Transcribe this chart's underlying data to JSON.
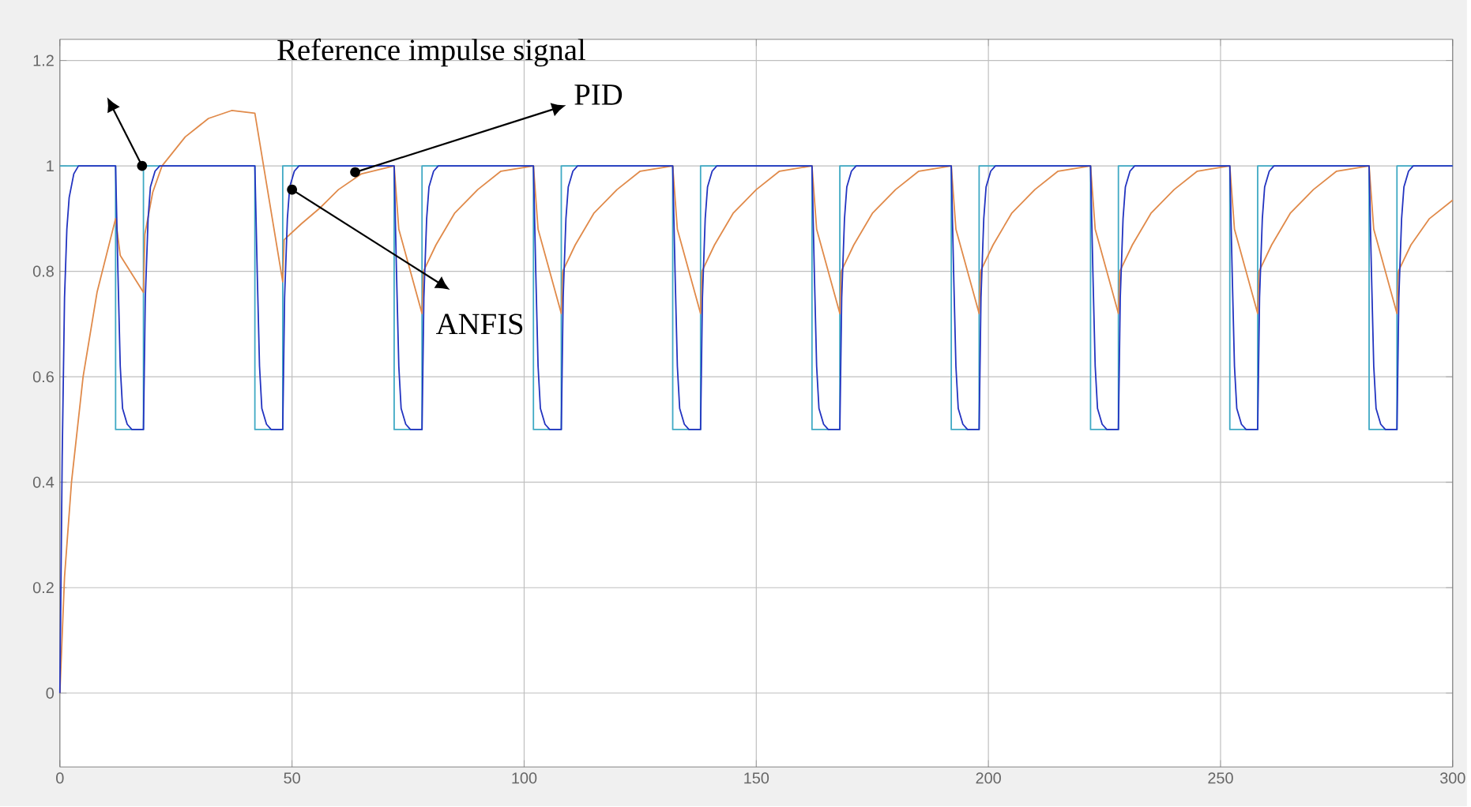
{
  "chart_data": {
    "type": "line",
    "xlim": [
      0,
      300
    ],
    "ylim": [
      -0.14,
      1.24
    ],
    "xticks": [
      0,
      50,
      100,
      150,
      200,
      250,
      300
    ],
    "yticks": [
      0,
      0.2,
      0.4,
      0.6,
      0.8,
      1,
      1.2
    ],
    "grid": true,
    "annotations": [
      "Reference impulse signal",
      {
        "text": "PID",
        "x": 63.6,
        "y": 0.988
      },
      {
        "text": "ANFIS",
        "x": 50,
        "y": 0.955
      }
    ],
    "series": [
      {
        "type": "step",
        "color": "#3fa9c4",
        "x": [
          0,
          12,
          18,
          42,
          48,
          72,
          78,
          102,
          108,
          132,
          138,
          162,
          168,
          192,
          198,
          222,
          228,
          252,
          258,
          282,
          288,
          300
        ],
        "values": [
          1,
          0.5,
          1,
          0.5,
          1,
          0.5,
          1,
          0.5,
          1,
          0.5,
          1,
          0.5,
          1,
          0.5,
          1,
          0.5,
          1,
          0.5,
          1,
          0.5,
          1,
          1
        ]
      },
      {
        "color": "#e08a4a",
        "x": [
          0,
          1,
          2.5,
          5,
          8,
          12,
          13,
          18,
          18.3,
          20,
          22,
          27,
          32,
          37,
          42,
          48,
          48.3,
          52,
          56,
          60,
          65,
          72,
          73,
          78,
          78.3,
          81,
          85,
          90,
          95,
          102,
          103,
          108,
          108.3,
          111,
          115,
          120,
          125,
          132,
          133,
          138,
          138.3,
          141,
          145,
          150,
          155,
          162,
          163,
          168,
          168.3,
          171,
          175,
          180,
          185,
          192,
          193,
          198,
          198.3,
          201,
          205,
          210,
          215,
          222,
          223,
          228,
          228.3,
          231,
          235,
          240,
          245,
          252,
          253,
          258,
          258.3,
          261,
          265,
          270,
          275,
          282,
          283,
          288,
          288.3,
          291,
          295,
          300
        ],
        "values": [
          0,
          0.22,
          0.4,
          0.6,
          0.76,
          0.9,
          0.83,
          0.76,
          0.87,
          0.95,
          1.0,
          1.055,
          1.09,
          1.105,
          1.1,
          0.78,
          0.86,
          0.89,
          0.92,
          0.955,
          0.985,
          1.0,
          0.88,
          0.72,
          0.8,
          0.85,
          0.91,
          0.955,
          0.99,
          1.0,
          0.88,
          0.72,
          0.8,
          0.85,
          0.91,
          0.955,
          0.99,
          1.0,
          0.88,
          0.72,
          0.8,
          0.85,
          0.91,
          0.955,
          0.99,
          1.0,
          0.88,
          0.72,
          0.8,
          0.85,
          0.91,
          0.955,
          0.99,
          1.0,
          0.88,
          0.72,
          0.8,
          0.85,
          0.91,
          0.955,
          0.99,
          1.0,
          0.88,
          0.72,
          0.8,
          0.85,
          0.91,
          0.955,
          0.99,
          1.0,
          0.88,
          0.72,
          0.8,
          0.85,
          0.91,
          0.955,
          0.99,
          1.0,
          0.88,
          0.72,
          0.8,
          0.85,
          0.9,
          0.935
        ]
      },
      {
        "color": "#2233c0",
        "x": [
          0,
          0.5,
          1,
          1.5,
          2,
          3,
          4,
          12,
          12.5,
          13,
          13.5,
          14.5,
          15.5,
          18,
          18.4,
          19,
          19.5,
          20.5,
          21.5,
          42,
          42.5,
          43,
          43.5,
          44.5,
          45.5,
          48,
          48.4,
          49,
          49.5,
          50.5,
          51.5,
          72,
          72.5,
          73,
          73.5,
          74.5,
          75.5,
          78,
          78.4,
          79,
          79.5,
          80.5,
          81.5,
          102,
          102.5,
          103,
          103.5,
          104.5,
          105.5,
          108,
          108.4,
          109,
          109.5,
          110.5,
          111.5,
          132,
          132.5,
          133,
          133.5,
          134.5,
          135.5,
          138,
          138.4,
          139,
          139.5,
          140.5,
          141.5,
          162,
          162.5,
          163,
          163.5,
          164.5,
          165.5,
          168,
          168.4,
          169,
          169.5,
          170.5,
          171.5,
          192,
          192.5,
          193,
          193.5,
          194.5,
          195.5,
          198,
          198.4,
          199,
          199.5,
          200.5,
          201.5,
          222,
          222.5,
          223,
          223.5,
          224.5,
          225.5,
          228,
          228.4,
          229,
          229.5,
          230.5,
          231.5,
          252,
          252.5,
          253,
          253.5,
          254.5,
          255.5,
          258,
          258.4,
          259,
          259.5,
          260.5,
          261.5,
          282,
          282.5,
          283,
          283.5,
          284.5,
          285.5,
          288,
          288.4,
          289,
          289.5,
          290.5,
          291.5,
          300
        ],
        "values": [
          0,
          0.45,
          0.75,
          0.88,
          0.94,
          0.985,
          1,
          1,
          0.8,
          0.62,
          0.54,
          0.51,
          0.5,
          0.5,
          0.75,
          0.9,
          0.96,
          0.99,
          1,
          1,
          0.8,
          0.62,
          0.54,
          0.51,
          0.5,
          0.5,
          0.75,
          0.9,
          0.96,
          0.99,
          1,
          1,
          0.8,
          0.62,
          0.54,
          0.51,
          0.5,
          0.5,
          0.75,
          0.9,
          0.96,
          0.99,
          1,
          1,
          0.8,
          0.62,
          0.54,
          0.51,
          0.5,
          0.5,
          0.75,
          0.9,
          0.96,
          0.99,
          1,
          1,
          0.8,
          0.62,
          0.54,
          0.51,
          0.5,
          0.5,
          0.75,
          0.9,
          0.96,
          0.99,
          1,
          1,
          0.8,
          0.62,
          0.54,
          0.51,
          0.5,
          0.5,
          0.75,
          0.9,
          0.96,
          0.99,
          1,
          1,
          0.8,
          0.62,
          0.54,
          0.51,
          0.5,
          0.5,
          0.75,
          0.9,
          0.96,
          0.99,
          1,
          1,
          0.8,
          0.62,
          0.54,
          0.51,
          0.5,
          0.5,
          0.75,
          0.9,
          0.96,
          0.99,
          1,
          1,
          0.8,
          0.62,
          0.54,
          0.51,
          0.5,
          0.5,
          0.75,
          0.9,
          0.96,
          0.99,
          1,
          1,
          0.8,
          0.62,
          0.54,
          0.51,
          0.5,
          0.5,
          0.75,
          0.9,
          0.96,
          0.99,
          1,
          1
        ]
      }
    ]
  }
}
